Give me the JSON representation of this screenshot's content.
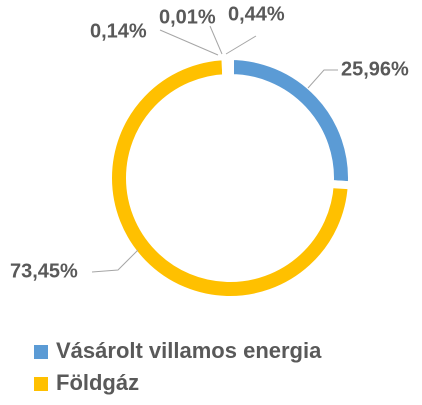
{
  "chart_data": {
    "type": "donut",
    "categories": [
      "Vásárolt villamos energia",
      "Földgáz",
      null,
      null,
      null
    ],
    "values": [
      25.96,
      73.45,
      0.14,
      0.01,
      0.44
    ],
    "value_labels": [
      "25,96%",
      "73,45%",
      "0,14%",
      "0,01%",
      "0,44%"
    ],
    "colors": [
      "#5b9bd5",
      "#ffc000",
      "#a5a5a5",
      "#ed7d31",
      "#4472c4"
    ]
  }
}
